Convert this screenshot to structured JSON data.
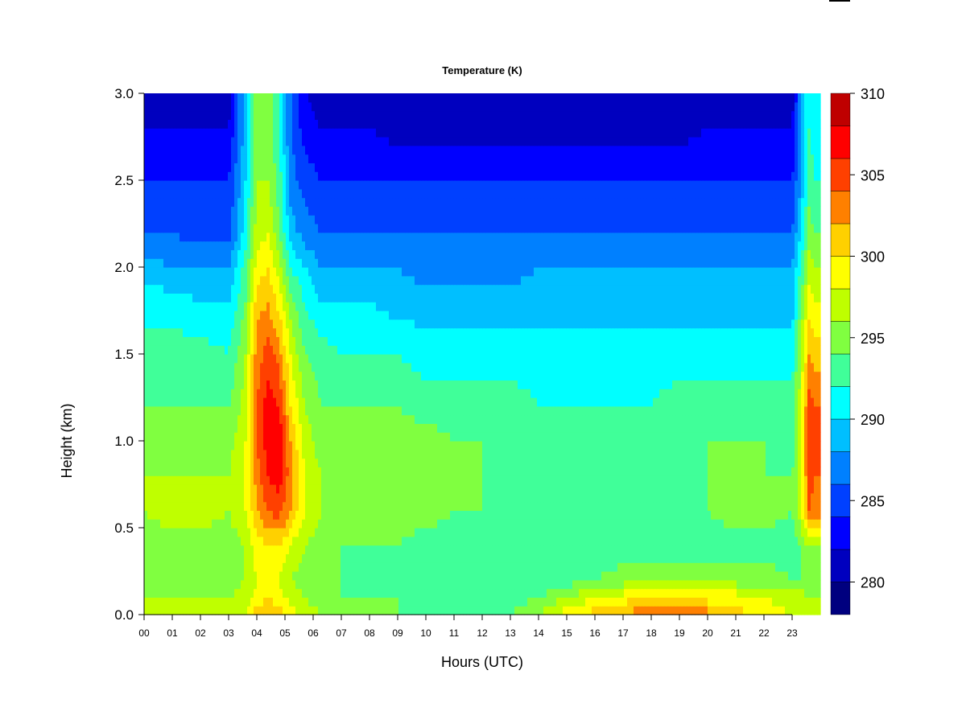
{
  "chart_data": {
    "type": "heatmap",
    "title": "Temperature (K)",
    "xlabel": "Hours (UTC)",
    "ylabel": "Height (km)",
    "x_ticks": [
      "00",
      "01",
      "02",
      "03",
      "04",
      "05",
      "06",
      "07",
      "08",
      "09",
      "10",
      "11",
      "12",
      "13",
      "14",
      "15",
      "16",
      "17",
      "18",
      "19",
      "20",
      "21",
      "22",
      "23"
    ],
    "y_ticks": [
      "0.0",
      "0.5",
      "1.0",
      "1.5",
      "2.0",
      "2.5",
      "3.0"
    ],
    "xlim": [
      0,
      24
    ],
    "ylim": [
      0,
      3
    ],
    "colorbar": {
      "ticks": [
        "280",
        "285",
        "290",
        "295",
        "300",
        "305",
        "310"
      ],
      "range": [
        278,
        310
      ],
      "levels": [
        278,
        280,
        282,
        284,
        286,
        288,
        290,
        292,
        294,
        296,
        298,
        300,
        302,
        304,
        306,
        308,
        310
      ],
      "colors": [
        "#00007f",
        "#0000bf",
        "#0000ff",
        "#0040ff",
        "#0080ff",
        "#00bfff",
        "#00ffff",
        "#40ff99",
        "#80ff40",
        "#bfff00",
        "#ffff00",
        "#ffd000",
        "#ff8000",
        "#ff4000",
        "#ff0000",
        "#bf0000",
        "#7f0000"
      ]
    },
    "grid": false,
    "legend": "colorbar-right",
    "approx_field": {
      "x": [
        0,
        1,
        2,
        3,
        3.6,
        4.0,
        4.4,
        4.8,
        5.2,
        5.7,
        6.3,
        7,
        8,
        9,
        10,
        11,
        12,
        13,
        14,
        15,
        16,
        17,
        18,
        19,
        20,
        21,
        22,
        23,
        23.3,
        23.6,
        23.8
      ],
      "y": [
        0.0,
        0.1,
        0.2,
        0.4,
        0.6,
        0.8,
        1.0,
        1.2,
        1.5,
        1.8,
        2.0,
        2.2,
        2.5,
        2.8,
        3.0
      ],
      "z": [
        [
          297,
          297,
          297,
          298,
          298,
          301,
          302,
          301,
          299,
          297,
          296,
          295,
          295,
          294,
          294,
          294,
          293,
          294,
          296,
          299,
          301,
          302,
          304,
          305,
          303,
          301,
          299,
          298,
          298,
          297,
          297
        ],
        [
          296,
          296,
          296,
          296,
          297,
          299,
          300,
          299,
          297,
          296,
          295,
          294,
          294,
          294,
          293,
          293,
          293,
          293,
          294,
          296,
          298,
          299,
          300,
          300,
          299,
          299,
          298,
          297,
          297,
          296,
          296
        ],
        [
          295,
          295,
          295,
          295,
          296,
          298,
          298,
          298,
          296,
          295,
          294,
          294,
          293,
          293,
          293,
          293,
          292,
          292,
          292,
          293,
          294,
          295,
          295,
          295,
          295,
          295,
          295,
          294,
          294,
          294,
          294
        ],
        [
          295,
          295,
          295,
          295,
          296,
          299,
          300,
          300,
          298,
          296,
          295,
          294,
          294,
          294,
          293,
          293,
          292,
          292,
          292,
          292,
          292,
          293,
          293,
          293,
          293,
          293,
          293,
          293,
          294,
          296,
          296
        ],
        [
          296,
          297,
          297,
          296,
          298,
          302,
          304,
          305,
          302,
          298,
          296,
          295,
          295,
          295,
          295,
          294,
          294,
          293,
          292,
          292,
          292,
          292,
          293,
          293,
          294,
          295,
          295,
          294,
          297,
          304,
          303
        ],
        [
          296,
          296,
          296,
          296,
          298,
          303,
          306,
          307,
          303,
          298,
          296,
          295,
          295,
          295,
          295,
          294,
          294,
          293,
          293,
          293,
          292,
          293,
          293,
          293,
          294,
          294,
          294,
          294,
          297,
          305,
          304
        ],
        [
          295,
          295,
          295,
          295,
          298,
          304,
          307,
          308,
          302,
          297,
          295,
          295,
          295,
          295,
          295,
          294,
          294,
          293,
          293,
          293,
          293,
          293,
          293,
          293,
          294,
          294,
          294,
          293,
          297,
          306,
          305
        ],
        [
          294,
          294,
          294,
          294,
          297,
          304,
          307,
          306,
          300,
          296,
          294,
          294,
          294,
          294,
          293,
          293,
          293,
          293,
          292,
          292,
          292,
          292,
          292,
          293,
          293,
          293,
          293,
          293,
          297,
          305,
          304
        ],
        [
          293,
          293,
          293,
          292,
          296,
          303,
          305,
          303,
          298,
          294,
          293,
          292,
          292,
          292,
          291,
          291,
          291,
          291,
          291,
          291,
          291,
          291,
          291,
          291,
          291,
          291,
          291,
          291,
          296,
          302,
          301
        ],
        [
          291,
          291,
          290,
          290,
          294,
          301,
          302,
          299,
          295,
          292,
          290,
          290,
          290,
          289,
          289,
          289,
          289,
          289,
          289,
          289,
          289,
          289,
          289,
          289,
          289,
          289,
          289,
          289,
          294,
          299,
          298
        ],
        [
          289,
          288,
          288,
          288,
          293,
          299,
          300,
          297,
          292,
          290,
          288,
          288,
          288,
          288,
          287,
          287,
          287,
          287,
          288,
          288,
          288,
          288,
          288,
          288,
          288,
          288,
          288,
          288,
          292,
          297,
          296
        ],
        [
          286,
          286,
          285,
          285,
          291,
          297,
          298,
          294,
          289,
          287,
          286,
          286,
          286,
          286,
          286,
          286,
          286,
          286,
          286,
          286,
          286,
          286,
          286,
          286,
          286,
          286,
          286,
          286,
          290,
          295,
          294
        ],
        [
          284,
          284,
          284,
          284,
          290,
          296,
          296,
          293,
          287,
          285,
          284,
          284,
          284,
          284,
          284,
          284,
          284,
          284,
          284,
          284,
          284,
          284,
          284,
          284,
          284,
          284,
          284,
          284,
          288,
          293,
          292
        ],
        [
          282,
          282,
          282,
          282,
          289,
          295,
          295,
          292,
          286,
          283,
          282,
          282,
          282,
          281,
          281,
          281,
          281,
          281,
          281,
          281,
          281,
          281,
          281,
          281,
          282,
          282,
          282,
          282,
          287,
          292,
          291
        ],
        [
          281,
          281,
          281,
          281,
          289,
          295,
          295,
          292,
          286,
          282,
          281,
          280,
          280,
          280,
          280,
          280,
          280,
          280,
          280,
          280,
          280,
          280,
          280,
          280,
          281,
          281,
          281,
          281,
          287,
          292,
          291
        ]
      ]
    }
  }
}
